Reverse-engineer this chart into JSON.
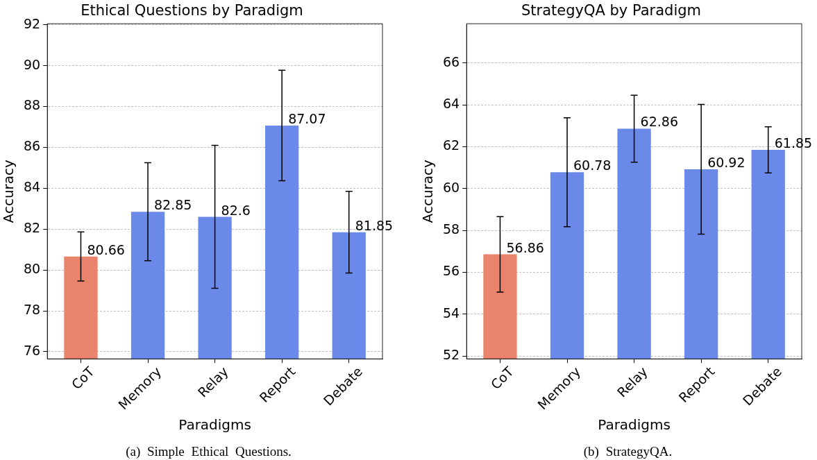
{
  "chart_data": [
    {
      "type": "bar",
      "title": "Ethical Questions by Paradigm",
      "xlabel": "Paradigms",
      "ylabel": "Accuracy",
      "categories": [
        "CoT",
        "Memory",
        "Relay",
        "Report",
        "Debate"
      ],
      "values": [
        80.66,
        82.85,
        82.6,
        87.07,
        81.85
      ],
      "colors": [
        "#ea836b",
        "#6a89e9",
        "#6a89e9",
        "#6a89e9",
        "#6a89e9"
      ],
      "errors": [
        1.2,
        2.4,
        3.5,
        2.7,
        2.0
      ],
      "data_labels": true,
      "ylim": [
        75.65,
        92.05
      ],
      "yticks": [
        76,
        78,
        80,
        82,
        84,
        86,
        88,
        90,
        92
      ],
      "grid": "y",
      "annotations": [
        "(a) Simple Ethical Questions."
      ]
    },
    {
      "type": "bar",
      "title": "StrategyQA by Paradigm",
      "xlabel": "Paradigms",
      "ylabel": "Accuracy",
      "categories": [
        "CoT",
        "Memory",
        "Relay",
        "Report",
        "Debate"
      ],
      "values": [
        56.86,
        60.78,
        62.86,
        60.92,
        61.85
      ],
      "colors": [
        "#ea836b",
        "#6a89e9",
        "#6a89e9",
        "#6a89e9",
        "#6a89e9"
      ],
      "errors": [
        1.8,
        2.6,
        1.6,
        3.1,
        1.1
      ],
      "data_labels": true,
      "ylim": [
        51.87,
        67.87
      ],
      "yticks": [
        52,
        54,
        56,
        58,
        60,
        62,
        64,
        66
      ],
      "grid": "y",
      "annotations": [
        "(b) StrategyQA."
      ]
    }
  ]
}
